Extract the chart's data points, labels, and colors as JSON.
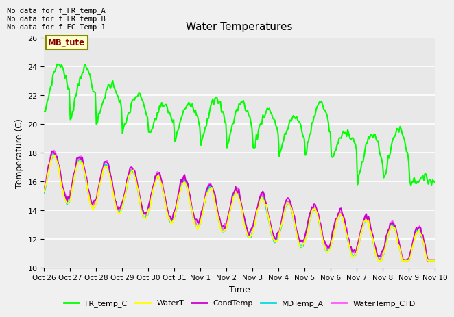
{
  "title": "Water Temperatures",
  "xlabel": "Time",
  "ylabel": "Temperature (C)",
  "ylim": [
    10,
    26
  ],
  "background_color": "#f0f0f0",
  "plot_bg_color": "#e8e8e8",
  "annotations": [
    "No data for f_FR_temp_A",
    "No data for f_FR_temp_B",
    "No data for f_FC_Temp_1"
  ],
  "mb_tute_label": "MB_tute",
  "series": {
    "FR_temp_C": {
      "color": "#00ff00",
      "linewidth": 1.5
    },
    "WaterT": {
      "color": "#ffff00",
      "linewidth": 1.5
    },
    "CondTemp": {
      "color": "#cc00cc",
      "linewidth": 1.5
    },
    "MDTemp_A": {
      "color": "#00dddd",
      "linewidth": 1.5
    },
    "WaterTemp_CTD": {
      "color": "#ff55ff",
      "linewidth": 1.5
    }
  },
  "x_tick_labels": [
    "Oct 26",
    "Oct 27",
    "Oct 28",
    "Oct 29",
    "Oct 30",
    "Oct 31",
    "Nov 1",
    "Nov 2",
    "Nov 3",
    "Nov 4",
    "Nov 5",
    "Nov 6",
    "Nov 7",
    "Nov 8",
    "Nov 9",
    "Nov 10"
  ],
  "grid_colors": [
    "#d8d8d8",
    "#e8e8e8"
  ]
}
